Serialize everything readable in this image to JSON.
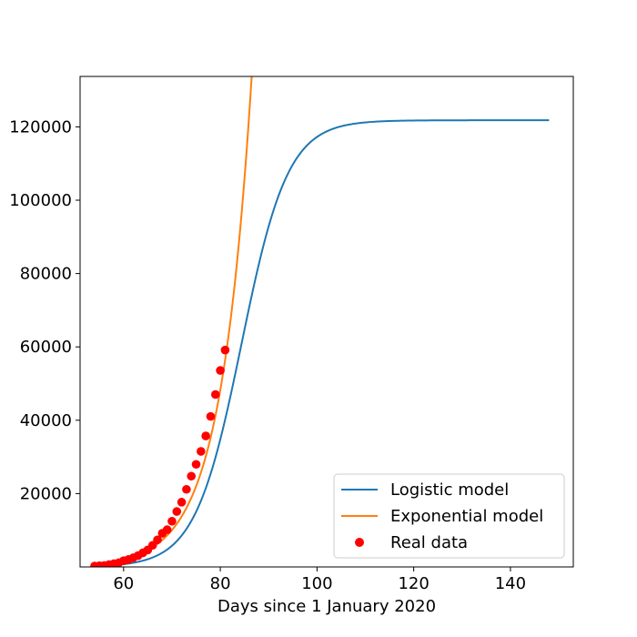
{
  "chart_data": {
    "type": "line",
    "xlabel": "Days since 1 January 2020",
    "ylabel": "",
    "xlim": [
      51,
      153
    ],
    "ylim": [
      0,
      133750
    ],
    "xticks": [
      60,
      80,
      100,
      120,
      140
    ],
    "yticks": [
      20000,
      40000,
      60000,
      80000,
      100000,
      120000
    ],
    "legend_position": "bottom-right",
    "grid": false,
    "series": [
      {
        "name": "Logistic model",
        "kind": "line",
        "color": "#1f77b4",
        "model": "logistic",
        "a": 4.8,
        "b": 84.4,
        "c": 121800,
        "x_range": [
          54,
          148
        ]
      },
      {
        "name": "Exponential model",
        "kind": "line",
        "color": "#ff7f0e",
        "model": "exponential",
        "A": 56500,
        "x0": 81,
        "k": 0.157,
        "x_range": [
          54,
          87
        ]
      },
      {
        "name": "Real data",
        "kind": "scatter",
        "color": "#ff0000",
        "x": [
          54,
          55,
          56,
          57,
          58,
          59,
          60,
          61,
          62,
          63,
          64,
          65,
          66,
          67,
          68,
          69,
          70,
          71,
          72,
          73,
          74,
          75,
          76,
          77,
          78,
          79,
          80,
          81
        ],
        "y": [
          229,
          322,
          400,
          650,
          888,
          1128,
          1694,
          2036,
          2502,
          3089,
          3858,
          4636,
          5883,
          7375,
          9172,
          10149,
          12462,
          15113,
          17660,
          21157,
          24747,
          27980,
          31506,
          35713,
          41035,
          47021,
          53578,
          59138
        ]
      }
    ]
  }
}
